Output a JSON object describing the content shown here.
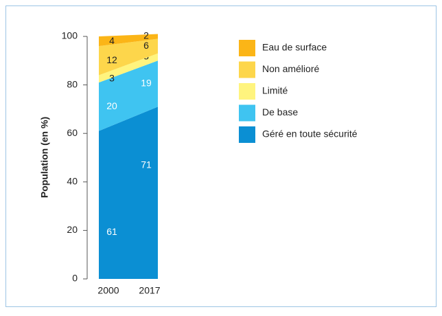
{
  "chart_data": {
    "type": "stacked_area",
    "y_label": "Population (en %)",
    "categories": [
      "2000",
      "2017"
    ],
    "series": [
      {
        "name": "Géré en toute sécurité",
        "color": "#0b8fd3",
        "values": [
          61,
          71
        ]
      },
      {
        "name": "De base",
        "color": "#3fc4f1",
        "values": [
          20,
          19
        ]
      },
      {
        "name": "Limité",
        "color": "#fff47e",
        "values": [
          3,
          3
        ]
      },
      {
        "name": "Non amélioré",
        "color": "#fdd64b",
        "values": [
          12,
          6
        ]
      },
      {
        "name": "Eau de surface",
        "color": "#fbb517",
        "values": [
          4,
          2
        ]
      }
    ],
    "ylim": [
      0,
      100
    ],
    "yticks": [
      0,
      20,
      40,
      60,
      80,
      100
    ],
    "grid": false
  }
}
